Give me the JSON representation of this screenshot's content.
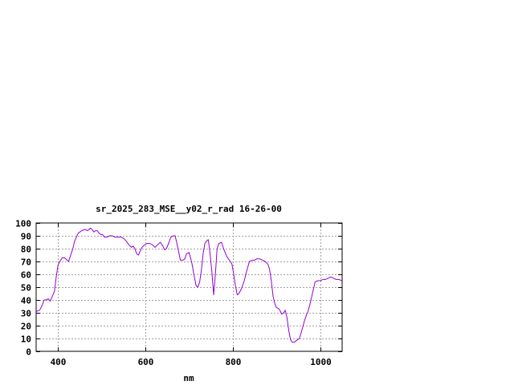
{
  "chart_data": {
    "type": "line",
    "title": "sr_2025_283_MSE__y02_r_rad 16-26-00",
    "xlabel": "nm",
    "ylabel": "",
    "xlim": [
      350,
      1050
    ],
    "ylim": [
      0,
      100
    ],
    "x_ticks": [
      400,
      600,
      800,
      1000
    ],
    "x_tick_labels": [
      "400",
      "600",
      "800",
      "1000"
    ],
    "y_ticks": [
      0,
      10,
      20,
      30,
      40,
      50,
      60,
      70,
      80,
      90,
      100
    ],
    "y_tick_labels": [
      "0",
      "10",
      "20",
      "30",
      "40",
      "50",
      "60",
      "70",
      "80",
      "90",
      "100"
    ],
    "grid": true,
    "legend": "none",
    "series": [
      {
        "color": "#9400d3",
        "x": [
          350,
          358,
          364,
          368,
          372,
          378,
          382,
          386,
          392,
          396,
          400,
          404,
          410,
          414,
          418,
          424,
          428,
          434,
          438,
          446,
          454,
          462,
          468,
          474,
          478,
          482,
          486,
          490,
          494,
          498,
          502,
          506,
          512,
          518,
          524,
          530,
          538,
          544,
          550,
          556,
          562,
          568,
          572,
          576,
          580,
          584,
          588,
          592,
          598,
          604,
          610,
          616,
          622,
          628,
          634,
          640,
          644,
          648,
          654,
          658,
          664,
          668,
          674,
          680,
          686,
          690,
          694,
          700,
          706,
          712,
          716,
          720,
          724,
          728,
          732,
          736,
          740,
          744,
          748,
          752,
          756,
          760,
          764,
          768,
          774,
          780,
          786,
          790,
          794,
          798,
          802,
          806,
          810,
          814,
          820,
          826,
          832,
          838,
          844,
          850,
          854,
          858,
          862,
          868,
          874,
          880,
          884,
          888,
          892,
          896,
          900,
          906,
          912,
          916,
          920,
          924,
          928,
          932,
          936,
          940,
          944,
          948,
          952,
          956,
          960,
          964,
          968,
          972,
          976,
          980,
          984,
          988,
          994,
          1000,
          1006,
          1012,
          1018,
          1024,
          1030,
          1036,
          1042,
          1050
        ],
        "y": [
          31,
          32,
          36,
          40,
          40,
          41,
          39,
          42,
          47,
          58,
          67,
          70,
          73,
          73,
          72,
          70,
          74,
          80,
          86,
          92,
          94,
          95,
          94,
          96,
          95,
          93,
          94,
          94,
          92,
          91,
          91,
          89,
          89,
          90,
          90,
          89,
          89,
          89,
          88,
          86,
          83,
          81,
          82,
          80,
          76,
          75,
          78,
          81,
          83,
          84,
          84,
          83,
          81,
          83,
          85,
          82,
          79,
          80,
          85,
          89,
          90,
          90,
          81,
          71,
          71,
          72,
          76,
          77,
          69,
          58,
          51,
          50,
          54,
          63,
          76,
          84,
          86,
          87,
          76,
          62,
          44,
          60,
          80,
          84,
          85,
          79,
          74,
          72,
          70,
          68,
          60,
          51,
          44,
          45,
          49,
          55,
          63,
          70,
          71,
          71,
          72,
          72,
          72,
          71,
          70,
          68,
          64,
          55,
          43,
          37,
          34,
          33,
          29,
          30,
          32,
          26,
          16,
          9,
          7,
          7,
          8,
          9,
          10,
          14,
          19,
          24,
          28,
          31,
          36,
          42,
          48,
          54,
          55,
          55,
          56,
          56,
          57,
          58,
          57,
          56,
          56,
          55
        ]
      }
    ]
  }
}
